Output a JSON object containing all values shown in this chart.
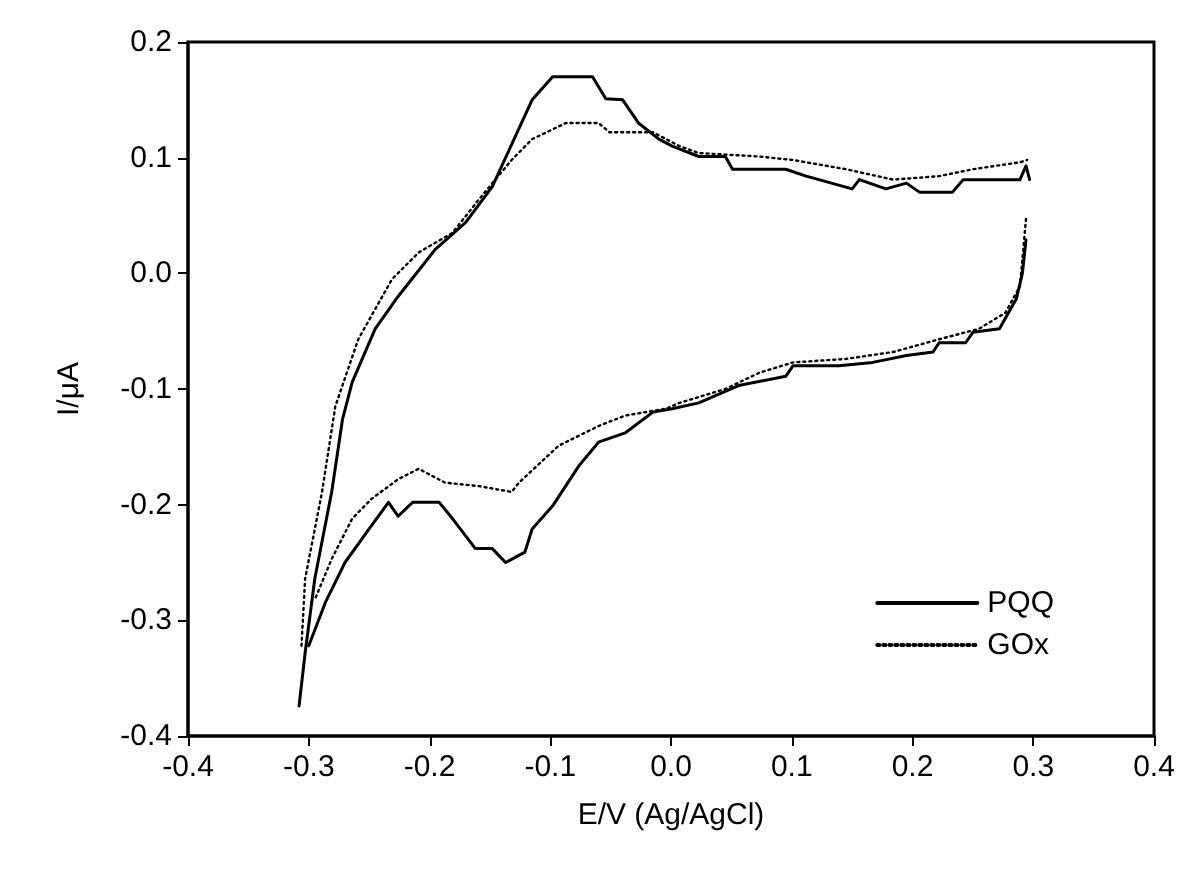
{
  "chart_data": {
    "type": "line",
    "xlabel": "E/V (Ag/AgCl)",
    "ylabel": "I/μA",
    "xlim": [
      -0.4,
      0.4
    ],
    "xticks": [
      -0.4,
      -0.3,
      -0.2,
      -0.1,
      {
        "value": 0,
        "label": "0.0"
      },
      0.1,
      0.2,
      0.3,
      0.4
    ],
    "ylim": [
      -0.4,
      0.2
    ],
    "yticks": [
      -0.4,
      -0.3,
      -0.2,
      -0.1,
      {
        "value": 0,
        "label": "0.0"
      },
      0.1,
      0.2
    ],
    "grid": false,
    "legend": "bottom right",
    "marker": "none",
    "series": [
      {
        "name": "PQQ",
        "color": "#000000",
        "line_style": "solid",
        "x": [
          -0.308,
          -0.303,
          -0.295,
          -0.281,
          -0.272,
          -0.264,
          -0.245,
          -0.226,
          -0.195,
          -0.17,
          -0.148,
          -0.115,
          -0.098,
          -0.065,
          -0.054,
          -0.04,
          -0.027,
          -0.01,
          0.001,
          0.023,
          0.045,
          0.051,
          0.095,
          0.112,
          0.15,
          0.156,
          0.178,
          0.195,
          0.206,
          0.233,
          0.242,
          0.289,
          0.294,
          0.297
        ],
        "values": [
          -0.374,
          -0.328,
          -0.264,
          -0.189,
          -0.126,
          -0.094,
          -0.048,
          -0.02,
          0.021,
          0.044,
          0.075,
          0.15,
          0.17,
          0.17,
          0.151,
          0.15,
          0.13,
          0.116,
          0.11,
          0.101,
          0.101,
          0.09,
          0.09,
          0.084,
          0.073,
          0.081,
          0.073,
          0.078,
          0.07,
          0.07,
          0.081,
          0.081,
          0.093,
          0.081
        ]
      },
      {
        "color": "#000000",
        "line_style": "solid",
        "x": [
          0.294,
          0.291,
          0.286,
          0.272,
          0.25,
          0.244,
          0.222,
          0.217,
          0.195,
          0.167,
          0.139,
          0.101,
          0.095,
          0.056,
          0.023,
          0.001,
          -0.015,
          -0.038,
          -0.06,
          -0.076,
          -0.098,
          -0.115,
          -0.121,
          -0.137,
          -0.148,
          -0.162,
          -0.181,
          -0.192,
          -0.214,
          -0.226,
          -0.234,
          -0.25,
          -0.27,
          -0.286,
          -0.3
        ],
        "values": [
          0.029,
          0.0,
          -0.022,
          -0.048,
          -0.051,
          -0.06,
          -0.06,
          -0.068,
          -0.071,
          -0.077,
          -0.08,
          -0.08,
          -0.089,
          -0.097,
          -0.112,
          -0.117,
          -0.12,
          -0.138,
          -0.146,
          -0.166,
          -0.201,
          -0.221,
          -0.241,
          -0.25,
          -0.238,
          -0.238,
          -0.212,
          -0.198,
          -0.198,
          -0.21,
          -0.198,
          -0.221,
          -0.25,
          -0.284,
          -0.322
        ]
      },
      {
        "name": "GOx",
        "color": "#000000",
        "line_style": "dotted",
        "x": [
          -0.306,
          -0.303,
          -0.289,
          -0.278,
          -0.259,
          -0.231,
          -0.209,
          -0.181,
          -0.159,
          -0.132,
          -0.115,
          -0.087,
          -0.06,
          -0.051,
          -0.015,
          0.007,
          0.023,
          0.073,
          0.101,
          0.145,
          0.184,
          0.222,
          0.25,
          0.289,
          0.295
        ],
        "values": [
          -0.322,
          -0.264,
          -0.189,
          -0.115,
          -0.057,
          -0.005,
          0.018,
          0.035,
          0.064,
          0.098,
          0.116,
          0.13,
          0.13,
          0.122,
          0.122,
          0.11,
          0.104,
          0.101,
          0.098,
          0.09,
          0.081,
          0.084,
          0.09,
          0.096,
          0.098
        ]
      },
      {
        "color": "#000000",
        "line_style": "dotted",
        "x": [
          0.294,
          0.289,
          0.277,
          0.255,
          0.222,
          0.184,
          0.145,
          0.101,
          0.073,
          0.045,
          0.007,
          -0.004,
          -0.038,
          -0.06,
          -0.093,
          -0.126,
          -0.132,
          -0.159,
          -0.187,
          -0.209,
          -0.226,
          -0.248,
          -0.264,
          -0.281,
          -0.295
        ],
        "values": [
          0.047,
          -0.011,
          -0.034,
          -0.048,
          -0.057,
          -0.068,
          -0.074,
          -0.077,
          -0.086,
          -0.1,
          -0.112,
          -0.117,
          -0.123,
          -0.132,
          -0.149,
          -0.181,
          -0.189,
          -0.184,
          -0.181,
          -0.169,
          -0.178,
          -0.195,
          -0.212,
          -0.247,
          -0.282
        ]
      }
    ]
  }
}
